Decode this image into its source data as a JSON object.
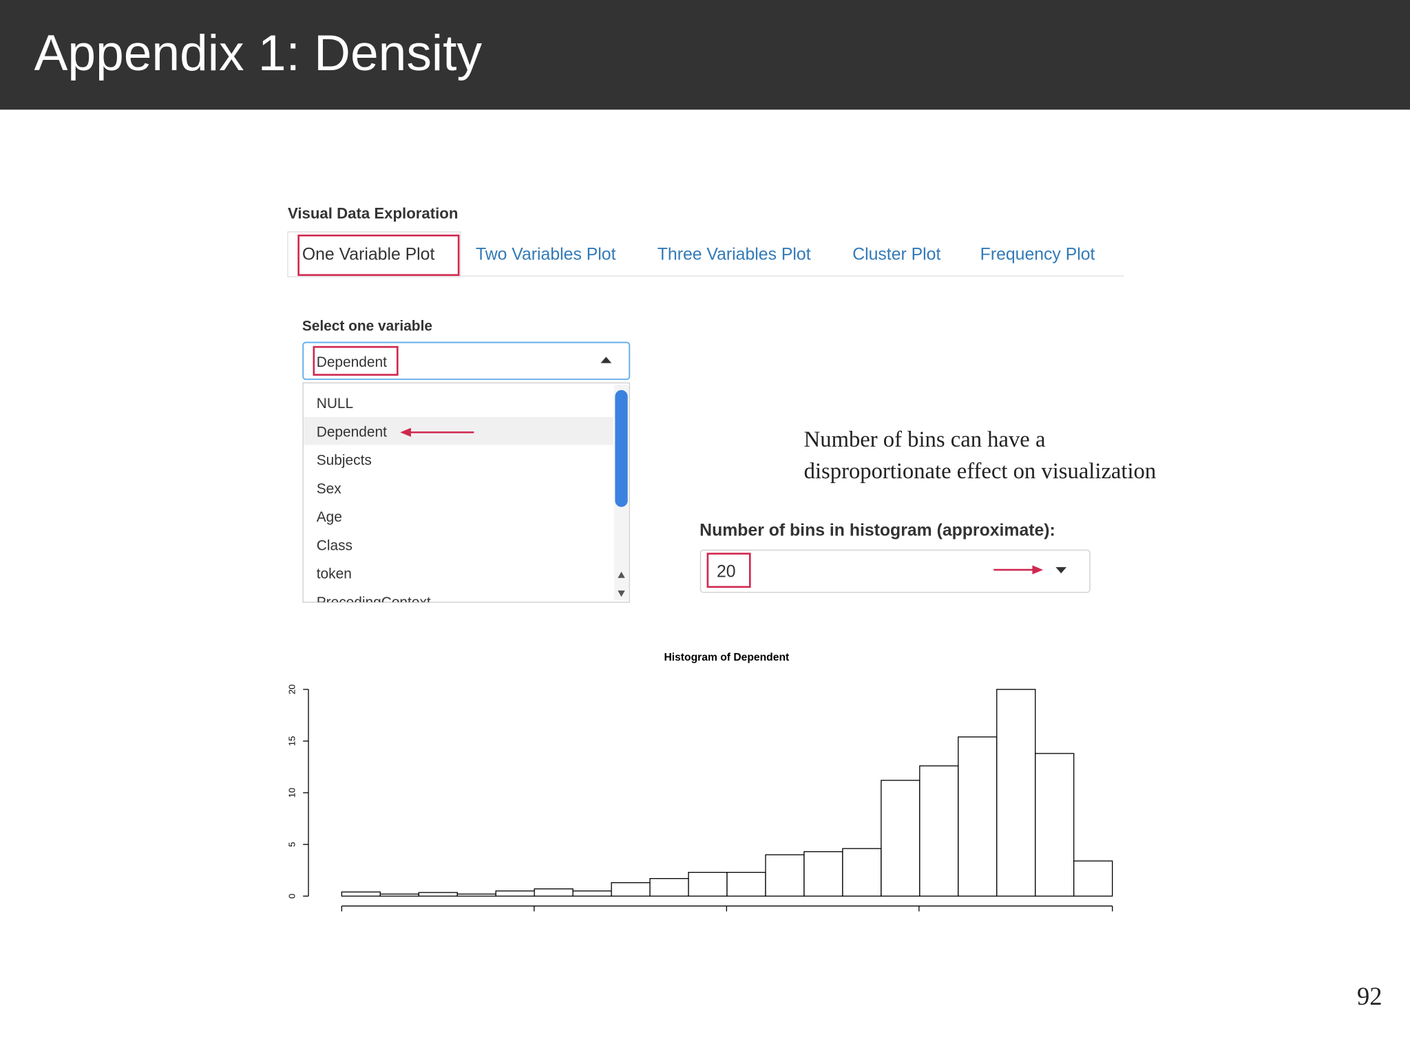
{
  "header": {
    "title": "Appendix 1: Density"
  },
  "app": {
    "title": "Visual Data Exploration",
    "tabs": [
      "One Variable Plot",
      "Two Variables Plot",
      "Three Variables Plot",
      "Cluster Plot",
      "Frequency Plot"
    ],
    "select_label": "Select one variable",
    "select_value": "Dependent",
    "options": [
      "NULL",
      "Dependent",
      "Subjects",
      "Sex",
      "Age",
      "Class",
      "token",
      "PrecedingContext"
    ],
    "bins_label": "Number of bins in histogram (approximate):",
    "bins_value": "20"
  },
  "annotation": [
    "Number of bins can have a",
    "disproportionate effect on visualization"
  ],
  "histogram": {
    "type": "histogram",
    "title": "Histogram of  Dependent",
    "counts": [
      0.4,
      0.2,
      0.35,
      0.2,
      0.5,
      0.7,
      0.5,
      1.3,
      1.7,
      2.3,
      2.3,
      4.0,
      4.3,
      4.6,
      11.2,
      12.6,
      15.4,
      20,
      13.8,
      3.4
    ],
    "ylim": [
      0,
      20
    ],
    "yticks": [
      0,
      5,
      10,
      15,
      20
    ]
  },
  "page_number": "92"
}
